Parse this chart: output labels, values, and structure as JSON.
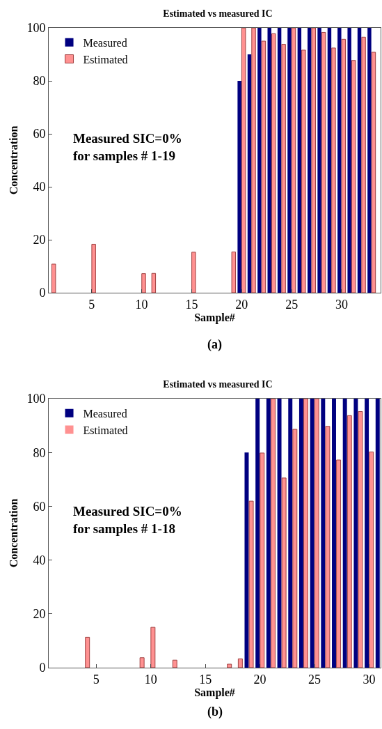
{
  "chart_data": [
    {
      "type": "bar",
      "title": "Estimated vs measured IC",
      "xlabel": "Sample#",
      "ylabel": "Concentration",
      "x": [
        1,
        2,
        3,
        4,
        5,
        6,
        7,
        8,
        9,
        10,
        11,
        12,
        13,
        14,
        15,
        16,
        17,
        18,
        19,
        20,
        21,
        22,
        23,
        24,
        25,
        26,
        27,
        28,
        29,
        30,
        31,
        32,
        33
      ],
      "series": [
        {
          "name": "Measured",
          "color": "#000080",
          "values": [
            0,
            0,
            0,
            0,
            0,
            0,
            0,
            0,
            0,
            0,
            0,
            0,
            0,
            0,
            0,
            0,
            0,
            0,
            0,
            80,
            90,
            100,
            100,
            100,
            100,
            100,
            100,
            100,
            100,
            100,
            100,
            100,
            100
          ]
        },
        {
          "name": "Estimated",
          "color": "#ff9191",
          "values": [
            10.8,
            0,
            0,
            0,
            18.3,
            0,
            0,
            0,
            0,
            7.2,
            7.3,
            0,
            0,
            0,
            15.3,
            0,
            0,
            0,
            15.4,
            100,
            100,
            95,
            97.8,
            93.8,
            100,
            91.6,
            100,
            98.3,
            92.4,
            95.7,
            87.7,
            96.5,
            90.8
          ]
        }
      ],
      "xlim": [
        0.7,
        33.9
      ],
      "xticks": [
        5,
        10,
        15,
        20,
        25,
        30
      ],
      "ylim": [
        0,
        100
      ],
      "yticks": [
        0,
        20,
        40,
        60,
        80,
        100
      ],
      "grid": false,
      "legend": "top left",
      "annotations": [
        "Measured SIC=0%\nfor samples # 1-19",
        "(a)"
      ]
    },
    {
      "type": "bar",
      "title": "Estimated vs measured IC",
      "xlabel": "Sample#",
      "ylabel": "Concentration",
      "x": [
        1,
        2,
        3,
        4,
        5,
        6,
        7,
        8,
        9,
        10,
        11,
        12,
        13,
        14,
        15,
        16,
        17,
        18,
        19,
        20,
        21,
        22,
        23,
        24,
        25,
        26,
        27,
        28,
        29,
        30,
        31
      ],
      "series": [
        {
          "name": "Measured",
          "color": "#000080",
          "values": [
            0,
            0,
            0,
            0,
            0,
            0,
            0,
            0,
            0,
            0,
            0,
            0,
            0,
            0,
            0,
            0,
            0,
            0,
            80,
            100,
            100,
            100,
            100,
            100,
            100,
            100,
            100,
            100,
            100,
            100,
            100
          ]
        },
        {
          "name": "Estimated",
          "color": "#ff9191",
          "values": [
            0,
            0,
            0,
            11.3,
            0,
            0,
            0,
            0,
            3.7,
            15,
            0,
            2.8,
            0,
            0,
            0,
            0,
            1.3,
            3.3,
            61.9,
            79.8,
            100,
            70.5,
            88.6,
            100,
            100,
            89.7,
            77.2,
            93.7,
            95.2,
            80.2,
            null
          ]
        }
      ],
      "xlim": [
        0.65,
        31.05
      ],
      "xticks": [
        5,
        10,
        15,
        20,
        25,
        30
      ],
      "ylim": [
        0,
        100
      ],
      "yticks": [
        0,
        20,
        40,
        60,
        80,
        100
      ],
      "grid": false,
      "legend": "top left",
      "annotations": [
        "Measured SIC=0%\nfor samples # 1-18",
        "(b)"
      ]
    }
  ]
}
